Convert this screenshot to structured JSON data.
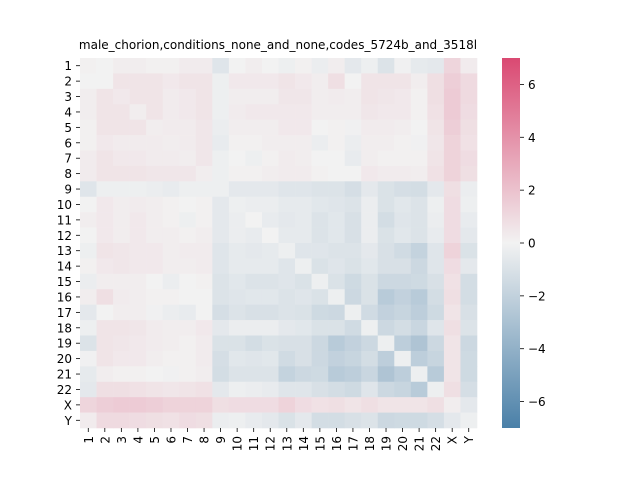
{
  "chart_data": {
    "type": "heatmap",
    "title": "male_chorion,conditions_none_and_none,codes_5724b_and_3518l",
    "xlabel": "",
    "ylabel": "",
    "row_labels": [
      "1",
      "2",
      "3",
      "4",
      "5",
      "6",
      "7",
      "8",
      "9",
      "10",
      "11",
      "12",
      "13",
      "14",
      "15",
      "16",
      "17",
      "18",
      "19",
      "20",
      "21",
      "22",
      "X",
      "Y"
    ],
    "col_labels": [
      "1",
      "2",
      "3",
      "4",
      "5",
      "6",
      "7",
      "8",
      "9",
      "10",
      "11",
      "12",
      "13",
      "14",
      "15",
      "16",
      "17",
      "18",
      "19",
      "20",
      "21",
      "22",
      "X",
      "Y"
    ],
    "colorbar": {
      "min": -7,
      "max": 7,
      "ticks": [
        -6,
        -4,
        -2,
        0,
        2,
        4,
        6
      ],
      "low_color": "#4a80a8",
      "mid_color": "#f2f2f2",
      "high_color": "#da4972"
    },
    "values": [
      [
        0.1,
        0.0,
        0.2,
        0.2,
        0.1,
        0.1,
        0.3,
        0.3,
        -0.8,
        0.0,
        0.2,
        0.0,
        -0.2,
        0.1,
        -0.3,
        0.2,
        -0.6,
        -0.2,
        -0.9,
        -0.1,
        -0.5,
        -0.6,
        1.2,
        0.3
      ],
      [
        0.0,
        0.0,
        0.6,
        0.6,
        0.6,
        0.4,
        0.6,
        0.6,
        -0.2,
        0.4,
        0.4,
        0.4,
        0.6,
        0.4,
        0.2,
        0.8,
        0.0,
        0.6,
        0.6,
        0.6,
        0.2,
        0.8,
        1.5,
        1.0
      ],
      [
        0.2,
        0.6,
        0.4,
        0.6,
        0.6,
        0.3,
        0.4,
        0.6,
        -0.2,
        0.2,
        0.2,
        0.2,
        0.5,
        0.5,
        0.2,
        0.3,
        0.2,
        0.6,
        0.5,
        0.4,
        0.1,
        0.8,
        1.6,
        1.0
      ],
      [
        0.2,
        0.6,
        0.6,
        0.2,
        0.6,
        0.3,
        0.4,
        0.6,
        -0.2,
        0.3,
        0.4,
        0.4,
        0.4,
        0.4,
        0.2,
        0.2,
        0.2,
        0.5,
        0.4,
        0.4,
        0.1,
        0.7,
        1.6,
        0.9
      ],
      [
        0.1,
        0.6,
        0.6,
        0.6,
        0.2,
        0.3,
        0.3,
        0.5,
        -0.3,
        0.2,
        0.2,
        0.2,
        0.4,
        0.4,
        0.0,
        0.1,
        -0.1,
        0.3,
        0.3,
        0.2,
        0.0,
        0.6,
        1.5,
        0.8
      ],
      [
        0.1,
        0.4,
        0.3,
        0.3,
        0.3,
        0.2,
        0.3,
        0.5,
        -0.4,
        0.1,
        0.1,
        0.2,
        0.2,
        0.2,
        -0.3,
        0.1,
        -0.3,
        0.2,
        0.2,
        0.1,
        -0.1,
        0.5,
        1.3,
        0.7
      ],
      [
        0.3,
        0.6,
        0.4,
        0.4,
        0.3,
        0.3,
        0.2,
        0.5,
        -0.2,
        0.0,
        -0.2,
        0.1,
        0.3,
        0.2,
        0.0,
        0.0,
        -0.4,
        0.2,
        0.1,
        0.1,
        0.1,
        0.6,
        1.3,
        0.9
      ],
      [
        0.3,
        0.6,
        0.6,
        0.6,
        0.5,
        0.5,
        0.5,
        0.2,
        -0.2,
        0.1,
        0.1,
        0.2,
        0.3,
        0.3,
        0.1,
        0.0,
        0.0,
        0.4,
        0.3,
        0.3,
        0.2,
        0.7,
        1.3,
        0.8
      ],
      [
        -0.8,
        -0.2,
        -0.2,
        -0.2,
        -0.3,
        -0.4,
        -0.2,
        -0.2,
        -0.2,
        -0.6,
        -0.6,
        -0.6,
        -0.8,
        -0.8,
        -0.9,
        -0.9,
        -1.2,
        -0.6,
        -1.0,
        -1.2,
        -1.3,
        -0.6,
        0.8,
        -0.3
      ],
      [
        0.0,
        0.4,
        0.2,
        0.3,
        0.2,
        0.1,
        0.0,
        0.1,
        -0.6,
        -0.2,
        -0.3,
        -0.3,
        -0.5,
        -0.5,
        -0.7,
        -0.8,
        -0.9,
        -0.3,
        -1.0,
        -0.7,
        -0.9,
        -0.2,
        0.9,
        -0.2
      ],
      [
        0.2,
        0.4,
        0.2,
        0.4,
        0.2,
        0.1,
        -0.2,
        0.1,
        -0.6,
        -0.3,
        0.0,
        -0.4,
        -0.6,
        -0.5,
        -0.9,
        -0.7,
        -1.1,
        -0.3,
        -1.3,
        -0.8,
        -0.9,
        -0.3,
        0.9,
        -0.4
      ],
      [
        0.0,
        0.4,
        0.2,
        0.4,
        0.2,
        0.2,
        0.1,
        0.2,
        -0.6,
        -0.3,
        -0.4,
        0.0,
        -0.5,
        -0.5,
        -0.9,
        -0.7,
        -1.1,
        -0.3,
        -1.0,
        -0.7,
        -0.9,
        -0.4,
        0.9,
        -0.6
      ],
      [
        -0.2,
        0.6,
        0.5,
        0.4,
        0.4,
        0.2,
        0.3,
        0.3,
        -0.8,
        -0.5,
        -0.6,
        -0.5,
        -0.2,
        -0.8,
        -0.8,
        -0.9,
        -0.9,
        -0.6,
        -1.1,
        -1.4,
        -1.9,
        -0.8,
        1.3,
        -1.0
      ],
      [
        0.1,
        0.4,
        0.5,
        0.4,
        0.4,
        0.2,
        0.2,
        0.3,
        -0.8,
        -0.5,
        -0.5,
        -0.5,
        -0.8,
        -0.2,
        -1.0,
        -0.8,
        -1.0,
        -0.7,
        -1.1,
        -1.1,
        -1.6,
        -0.8,
        0.9,
        -0.6
      ],
      [
        -0.3,
        0.2,
        0.2,
        0.2,
        0.0,
        -0.3,
        0.0,
        0.1,
        -0.9,
        -0.7,
        -0.9,
        -0.9,
        -0.8,
        -1.0,
        -0.2,
        -1.0,
        -1.5,
        -1.0,
        -1.6,
        -1.6,
        -1.5,
        -1.1,
        0.7,
        -1.3
      ],
      [
        0.2,
        0.8,
        0.3,
        0.2,
        0.1,
        0.1,
        0.0,
        0.0,
        -0.9,
        -0.8,
        -0.7,
        -0.7,
        -0.9,
        -0.8,
        -1.0,
        -0.2,
        -1.6,
        -1.0,
        -2.4,
        -2.0,
        -2.4,
        -1.3,
        0.8,
        -1.3
      ],
      [
        -0.6,
        0.0,
        0.2,
        0.2,
        -0.1,
        -0.3,
        -0.4,
        0.0,
        -1.2,
        -0.9,
        -1.1,
        -1.1,
        -0.9,
        -1.0,
        -1.5,
        -1.6,
        -0.2,
        -1.4,
        -2.0,
        -1.8,
        -2.2,
        -1.5,
        0.6,
        -1.1
      ],
      [
        -0.2,
        0.6,
        0.6,
        0.5,
        0.3,
        0.2,
        0.2,
        0.4,
        -0.6,
        -0.3,
        -0.3,
        -0.3,
        -0.6,
        -0.7,
        -1.0,
        -1.0,
        -1.4,
        -0.2,
        -1.6,
        -1.3,
        -1.7,
        -0.8,
        0.8,
        -0.9
      ],
      [
        -0.9,
        0.6,
        0.5,
        0.4,
        0.3,
        0.2,
        0.1,
        0.3,
        -1.0,
        -1.0,
        -1.3,
        -1.0,
        -1.1,
        -1.1,
        -1.6,
        -2.4,
        -2.0,
        -1.6,
        -0.2,
        -2.2,
        -2.8,
        -1.6,
        0.6,
        -1.6
      ],
      [
        -0.1,
        0.6,
        0.4,
        0.4,
        0.2,
        0.1,
        0.1,
        0.3,
        -1.2,
        -0.7,
        -0.8,
        -0.7,
        -1.4,
        -1.1,
        -1.6,
        -2.0,
        -1.8,
        -1.3,
        -2.2,
        -0.2,
        -2.2,
        -1.8,
        0.6,
        -1.5
      ],
      [
        -0.5,
        0.2,
        0.1,
        0.1,
        0.0,
        -0.1,
        0.1,
        0.2,
        -1.3,
        -0.9,
        -0.9,
        -0.9,
        -1.9,
        -1.6,
        -1.5,
        -2.4,
        -2.2,
        -1.7,
        -2.8,
        -2.2,
        -0.2,
        -2.4,
        0.6,
        -1.5
      ],
      [
        -0.6,
        0.8,
        0.8,
        0.7,
        0.6,
        0.5,
        0.6,
        0.7,
        -0.6,
        -0.2,
        -0.3,
        -0.4,
        -0.8,
        -0.8,
        -1.1,
        -1.3,
        -1.5,
        -0.8,
        -1.6,
        -1.8,
        -2.4,
        -0.2,
        0.8,
        -1.2
      ],
      [
        1.2,
        1.5,
        1.6,
        1.6,
        1.5,
        1.3,
        1.3,
        1.3,
        0.8,
        0.9,
        0.9,
        0.9,
        1.3,
        0.9,
        0.7,
        0.8,
        0.6,
        0.8,
        0.6,
        0.6,
        0.6,
        0.8,
        0.2,
        -0.6
      ],
      [
        0.3,
        1.0,
        1.0,
        0.9,
        0.8,
        0.7,
        0.9,
        0.8,
        -0.3,
        -0.2,
        -0.4,
        -0.6,
        -1.0,
        -0.6,
        -1.3,
        -1.3,
        -1.1,
        -0.9,
        -1.6,
        -1.5,
        -1.5,
        -1.2,
        -0.6,
        -0.2
      ]
    ]
  }
}
